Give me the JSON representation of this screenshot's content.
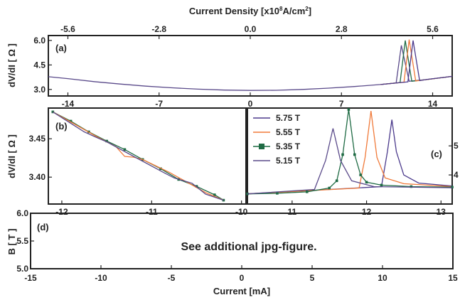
{
  "top_axis": {
    "label_prefix": "Current Density [x10",
    "label_exp": "8",
    "label_mid": "A/cm",
    "label_exp2": "2",
    "label_suffix": "]",
    "ticks": [
      "-5.6",
      "-2.8",
      "0.0",
      "2.8",
      "5.6"
    ]
  },
  "panel_a": {
    "tag": "(a)",
    "ylabel": "dV/dI [ Ω ]",
    "yticks": [
      "6.0",
      "4.5",
      "3.0"
    ],
    "xticks": [
      "-14",
      "-7",
      "0",
      "7",
      "14"
    ]
  },
  "panel_b": {
    "tag": "(b)",
    "ylabel": "dV/dI [ Ω ]",
    "yticks": [
      "3.45",
      "3.40"
    ],
    "xticks": [
      "-12",
      "-11",
      "-10"
    ]
  },
  "panel_c": {
    "tag": "(c)",
    "xticks": [
      "11",
      "12",
      "13"
    ],
    "right_ticks": [
      "5",
      "4"
    ],
    "legend": [
      "5.75 T",
      "5.55 T",
      "5.35 T",
      "5.15 T"
    ]
  },
  "panel_d": {
    "tag": "(d)",
    "ylabel": "B [ T ]",
    "yticks": [
      "6.0",
      "5.5",
      "5.0"
    ],
    "xticks": [
      "-15",
      "-10",
      "-5",
      "0",
      "5",
      "10",
      "15"
    ],
    "xlabel": "Current [mA]",
    "note": "See additional jpg-figure."
  },
  "colors": {
    "s575": "#4b3a8c",
    "s555": "#f07a3a",
    "s535": "#1f6b44",
    "s515": "#5a4a8a",
    "frame": "#222222"
  },
  "chart_data": [
    {
      "type": "line",
      "panel": "(a)",
      "xlabel": "",
      "ylabel": "dV/dI [ Ω ]",
      "xlim": [
        -15.5,
        15.5
      ],
      "ylim": [
        2.6,
        6.3
      ],
      "top_xlabel": "Current Density [x10^8 A/cm^2]",
      "top_xlim": [
        -6.2,
        6.2
      ],
      "series": [
        {
          "name": "5.15 T",
          "x": [
            -15.5,
            -14,
            -12,
            -10,
            -8,
            -6,
            -4,
            -2,
            0,
            2,
            4,
            6,
            8,
            10,
            11.2,
            11.6,
            12.2,
            12.8,
            13.5,
            14,
            15,
            15.5
          ],
          "y": [
            3.78,
            3.66,
            3.48,
            3.33,
            3.2,
            3.1,
            3.02,
            2.96,
            2.94,
            2.95,
            3.0,
            3.08,
            3.18,
            3.3,
            3.4,
            5.7,
            3.5,
            3.55,
            3.6,
            3.65,
            3.75,
            3.8
          ]
        },
        {
          "name": "5.35 T",
          "x": [
            10,
            11.5,
            11.9,
            12.4,
            13.5,
            15.5
          ],
          "y": [
            3.3,
            3.42,
            6.0,
            3.5,
            3.6,
            3.8
          ]
        },
        {
          "name": "5.55 T",
          "x": [
            10,
            11.8,
            12.2,
            12.7,
            13.5,
            15.5
          ],
          "y": [
            3.3,
            3.44,
            6.05,
            3.52,
            3.6,
            3.8
          ]
        },
        {
          "name": "5.75 T",
          "x": [
            10,
            12.1,
            12.5,
            13.0,
            13.6,
            15.5
          ],
          "y": [
            3.3,
            3.46,
            6.0,
            3.54,
            3.62,
            3.8
          ]
        }
      ]
    },
    {
      "type": "line",
      "panel": "(b)",
      "xlim": [
        -12.15,
        -9.95
      ],
      "ylim": [
        3.365,
        3.49
      ],
      "series": [
        {
          "name": "5.35 T",
          "marker": "square",
          "x": [
            -12.1,
            -11.9,
            -11.7,
            -11.5,
            -11.3,
            -11.1,
            -10.9,
            -10.7,
            -10.5,
            -10.3,
            -10.2
          ],
          "y": [
            3.485,
            3.473,
            3.459,
            3.447,
            3.436,
            3.423,
            3.411,
            3.397,
            3.388,
            3.377,
            3.37
          ]
        },
        {
          "name": "5.55 T",
          "x": [
            -12.1,
            -11.6,
            -11.4,
            -11.3,
            -11.2,
            -11.1,
            -10.8,
            -10.4,
            -10.2
          ],
          "y": [
            3.485,
            3.452,
            3.44,
            3.427,
            3.426,
            3.423,
            3.406,
            3.38,
            3.37
          ]
        },
        {
          "name": "5.15 T",
          "x": [
            -12.1,
            -11.75,
            -11.62,
            -11.5,
            -11.2,
            -10.85,
            -10.75,
            -10.55,
            -10.4,
            -10.2
          ],
          "y": [
            3.485,
            3.459,
            3.452,
            3.446,
            3.427,
            3.405,
            3.399,
            3.392,
            3.378,
            3.37
          ]
        }
      ]
    },
    {
      "type": "line",
      "panel": "(c)",
      "xlim": [
        10.4,
        13.15
      ],
      "ylim": [
        3.0,
        6.3
      ],
      "series": [
        {
          "name": "5.75 T",
          "x": [
            10.4,
            12.2,
            12.28,
            12.34,
            12.4,
            12.5,
            12.7,
            13.15
          ],
          "y": [
            3.35,
            3.6,
            4.8,
            5.9,
            4.8,
            4.0,
            3.72,
            3.62
          ]
        },
        {
          "name": "5.55 T",
          "x": [
            10.4,
            11.9,
            11.98,
            12.06,
            12.14,
            12.25,
            12.5,
            13.15
          ],
          "y": [
            3.35,
            3.55,
            4.6,
            6.2,
            4.6,
            3.9,
            3.7,
            3.6
          ]
        },
        {
          "name": "5.35 T",
          "marker": "square",
          "x": [
            10.4,
            10.8,
            11.2,
            11.5,
            11.6,
            11.68,
            11.76,
            11.84,
            11.92,
            12.0,
            12.2,
            12.6,
            13.15
          ],
          "y": [
            3.35,
            3.37,
            3.42,
            3.55,
            3.8,
            4.7,
            6.25,
            4.7,
            4.0,
            3.75,
            3.65,
            3.6,
            3.58
          ]
        },
        {
          "name": "5.15 T",
          "x": [
            10.4,
            11.3,
            11.45,
            11.55,
            11.65,
            11.8,
            12.1,
            13.15
          ],
          "y": [
            3.35,
            3.5,
            4.5,
            5.6,
            4.5,
            3.8,
            3.6,
            3.56
          ]
        }
      ]
    },
    {
      "type": "line",
      "panel": "(d)",
      "xlabel": "Current [mA]",
      "ylabel": "B [ T ]",
      "xlim": [
        -15,
        15
      ],
      "ylim": [
        5.0,
        6.0
      ],
      "series": []
    }
  ]
}
